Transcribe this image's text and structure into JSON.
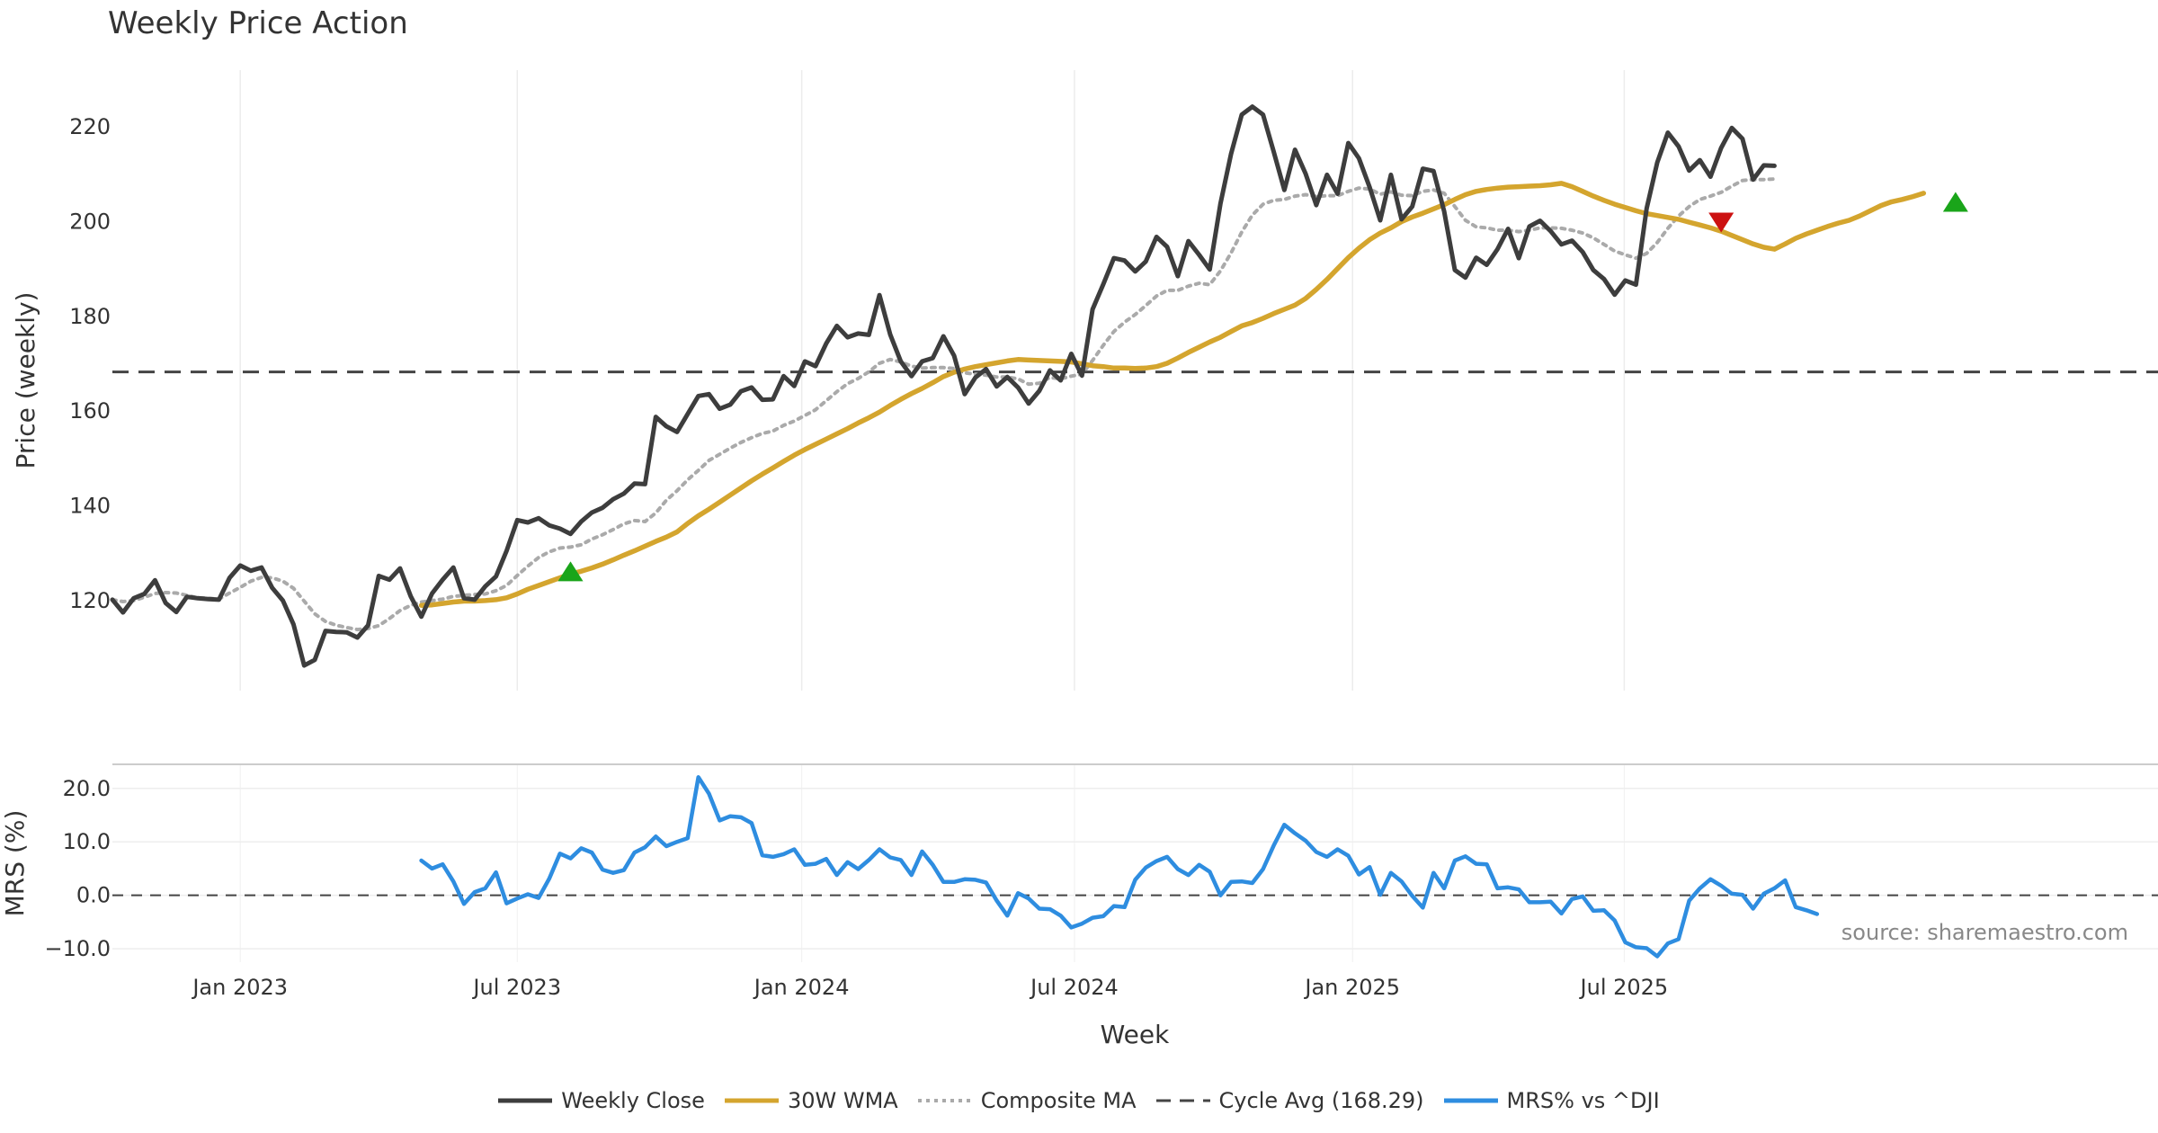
{
  "chart_data": [
    {
      "type": "line",
      "title": "Weekly Price Action",
      "ylabel": "Price (weekly)",
      "ylim": [
        101,
        232
      ],
      "yticks": [
        "120",
        "140",
        "160",
        "180",
        "200",
        "220"
      ],
      "x_range_weeks": [
        0,
        192
      ],
      "series": [
        {
          "name": "Weekly Close",
          "color": "#3d3d3d",
          "start_week": 0,
          "values": [
            120.2,
            117.5,
            120.5,
            121.4,
            124.3,
            119.5,
            117.6,
            120.8,
            120.5,
            120.3,
            120.2,
            124.8,
            127.4,
            126.3,
            127,
            122.7,
            120,
            115,
            106.3,
            107.5,
            113.6,
            113.4,
            113.3,
            112.2,
            114.8,
            125.2,
            124.4,
            126.8,
            120.9,
            116.6,
            121.5,
            124.4,
            127,
            120.5,
            120.2,
            123,
            125.1,
            130.5,
            137,
            136.5,
            137.4,
            135.9,
            135.2,
            134.1,
            136.7,
            138.6,
            139.6,
            141.4,
            142.6,
            144.7,
            144.6,
            158.8,
            156.8,
            155.6,
            159.4,
            163.2,
            163.6,
            160.5,
            161.4,
            164.2,
            165,
            162.4,
            162.5,
            167.4,
            165.3,
            170.5,
            169.5,
            174.3,
            178,
            175.6,
            176.4,
            176.1,
            184.5,
            176.2,
            170.5,
            167.4,
            170.5,
            171.2,
            175.8,
            171.7,
            163.6,
            167.1,
            168.9,
            165.2,
            167.2,
            165,
            161.6,
            164.3,
            168.6,
            166.5,
            172.1,
            167.5,
            181.5,
            186.8,
            192.3,
            191.8,
            189.5,
            191.6,
            196.8,
            194.7,
            188.5,
            195.9,
            193,
            189.9,
            203.8,
            214.3,
            222.6,
            224.3,
            222.6,
            214.8,
            206.7,
            215.2,
            210.1,
            203.5,
            209.9,
            205.9,
            216.6,
            213.4,
            207.3,
            200.3,
            209.9,
            200.5,
            203.2,
            211.2,
            210.7,
            202.2,
            189.8,
            188.2,
            192.4,
            190.9,
            194.2,
            198.5,
            192.3,
            199,
            200.2,
            198,
            195.2,
            196,
            193.6,
            189.8,
            187.9,
            184.6,
            187.6,
            186.7,
            202.8,
            212.5,
            218.8,
            215.9,
            210.8,
            213,
            209.5,
            215.6,
            219.8,
            217.5,
            208.9,
            211.9,
            211.8
          ]
        },
        {
          "name": "30W WMA",
          "color": "#d4a52e",
          "start_week": 29,
          "values": [
            119,
            119.1,
            119.4,
            119.7,
            119.9,
            119.9,
            120,
            120.2,
            120.6,
            121.4,
            122.4,
            123.2,
            124,
            124.8,
            125.6,
            126.2,
            126.9,
            127.7,
            128.6,
            129.6,
            130.5,
            131.5,
            132.5,
            133.4,
            134.5,
            136.3,
            137.9,
            139.3,
            140.8,
            142.3,
            143.8,
            145.3,
            146.7,
            148,
            149.4,
            150.7,
            151.9,
            153,
            154.1,
            155.2,
            156.3,
            157.5,
            158.6,
            159.8,
            161.2,
            162.5,
            163.7,
            164.8,
            166,
            167.3,
            168.2,
            168.9,
            169.4,
            169.8,
            170.2,
            170.6,
            170.9,
            170.8,
            170.7,
            170.6,
            170.5,
            170.4,
            170,
            169.6,
            169.4,
            169.1,
            169.1,
            169,
            169.1,
            169.4,
            170.1,
            171.2,
            172.4,
            173.5,
            174.6,
            175.6,
            176.8,
            178,
            178.7,
            179.6,
            180.6,
            181.5,
            182.4,
            183.8,
            185.7,
            187.8,
            190.1,
            192.4,
            194.4,
            196.2,
            197.6,
            198.7,
            200,
            201,
            201.8,
            202.7,
            203.6,
            204.7,
            205.7,
            206.4,
            206.8,
            207.1,
            207.3,
            207.4,
            207.5,
            207.6,
            207.8,
            208.1,
            207.4,
            206.4,
            205.4,
            204.5,
            203.7,
            203,
            202.3,
            201.7,
            201.3,
            200.9,
            200.5,
            199.9,
            199.3,
            198.7,
            198,
            197.1,
            196.2,
            195.3,
            194.6,
            194.2,
            195.3,
            196.5,
            197.4,
            198.2,
            199,
            199.7,
            200.3,
            201.2,
            202.3,
            203.4,
            204.2,
            204.7,
            205.3,
            206
          ]
        },
        {
          "name": "Composite MA",
          "color": "#aaaaaa",
          "start_week": 0,
          "values": [
            120.2,
            119.8,
            120,
            120.7,
            121.5,
            121.7,
            121.6,
            121.1,
            120.6,
            120.5,
            120.3,
            121.6,
            122.8,
            124.1,
            124.9,
            124.8,
            124.1,
            122.6,
            119.9,
            117.2,
            115.6,
            114.8,
            114.3,
            113.9,
            114.1,
            114.7,
            116.2,
            117.9,
            119,
            119.7,
            120,
            120.3,
            120.9,
            121.1,
            121.3,
            121.4,
            122.1,
            123.2,
            125.3,
            127.3,
            129.1,
            130.3,
            131.1,
            131.3,
            131.8,
            133,
            133.9,
            135,
            136.2,
            136.9,
            136.7,
            138.5,
            141.2,
            143.2,
            145.5,
            147.5,
            149.6,
            150.9,
            152.2,
            153.4,
            154.4,
            155.3,
            155.8,
            157,
            157.9,
            159.1,
            160.3,
            162.2,
            164.1,
            165.8,
            166.9,
            168.3,
            170.1,
            170.9,
            170.4,
            169.5,
            169.1,
            169.2,
            169.2,
            169,
            168.1,
            167.8,
            167.6,
            167.2,
            167.2,
            166.8,
            165.7,
            165.9,
            167.1,
            166.8,
            167.4,
            167.8,
            170.7,
            173.9,
            176.8,
            178.8,
            180.4,
            182.3,
            184.3,
            185.5,
            185.5,
            186.4,
            187,
            186.7,
            189.6,
            193.4,
            197.8,
            201.4,
            203.7,
            204.5,
            204.7,
            205.4,
            205.7,
            205.3,
            205.5,
            205.5,
            206.4,
            207.1,
            206.9,
            205.8,
            206.3,
            205.6,
            205.5,
            206.4,
            206.7,
            206,
            203.2,
            200.3,
            198.9,
            198.7,
            198.2,
            198.2,
            197.9,
            198.2,
            198.7,
            198.7,
            198.6,
            198.2,
            197.6,
            196.6,
            195.2,
            193.8,
            193,
            192.3,
            193.3,
            195.6,
            198.6,
            201.2,
            203.2,
            204.7,
            205.4,
            206.2,
            207.5,
            208.7,
            208.9,
            208.9,
            209
          ]
        }
      ],
      "reference_line": {
        "name": "Cycle Avg (168.29)",
        "value": 168.29,
        "color": "#444444"
      },
      "signals": [
        {
          "type": "buy",
          "week": 43,
          "value": 126,
          "color": "#1aa51a"
        },
        {
          "type": "sell",
          "week": 151,
          "value": 200,
          "color": "#cc1111"
        },
        {
          "type": "buy",
          "week": 173,
          "value": 204,
          "color": "#1aa51a"
        }
      ]
    },
    {
      "type": "line",
      "ylabel": "MRS (%)",
      "ylim": [
        -12.5,
        24.5
      ],
      "yticks": [
        "−10.0",
        "0.0",
        "10.0",
        "20.0"
      ],
      "xlabel": "Week",
      "xticks": [
        "Jan 2023",
        "Jul 2023",
        "Jan 2024",
        "Jul 2024",
        "Jan 2025",
        "Jul 2025"
      ],
      "source": "source: sharemaestro.com",
      "series": [
        {
          "name": "MRS% vs ^DJI",
          "color": "#2e8de0",
          "start_week": 29,
          "values": [
            6.5,
            5,
            5.8,
            2.6,
            -1.6,
            0.6,
            1.3,
            4.3,
            -1.5,
            -0.6,
            0.2,
            -0.5,
            3.1,
            7.8,
            6.9,
            8.8,
            8,
            4.8,
            4.2,
            4.7,
            8,
            9,
            11,
            9.2,
            10,
            10.7,
            22.1,
            19,
            14,
            14.8,
            14.6,
            13.5,
            7.5,
            7.2,
            7.7,
            8.6,
            5.7,
            5.9,
            6.8,
            3.8,
            6.2,
            4.9,
            6.6,
            8.6,
            7.1,
            6.6,
            3.8,
            8.2,
            5.7,
            2.5,
            2.5,
            3,
            2.9,
            2.4,
            -1,
            -3.8,
            0.4,
            -0.6,
            -2.5,
            -2.6,
            -3.8,
            -6,
            -5.3,
            -4.2,
            -3.9,
            -2,
            -2.2,
            2.9,
            5.2,
            6.4,
            7.2,
            4.9,
            3.8,
            5.7,
            4.4,
            0,
            2.5,
            2.6,
            2.3,
            4.9,
            9.3,
            13.2,
            11.6,
            10.2,
            8.1,
            7.2,
            8.6,
            7.4,
            3.9,
            5.3,
            0.1,
            4.2,
            2.6,
            -0.1,
            -2.3,
            4.2,
            1.3,
            6.5,
            7.3,
            5.9,
            5.8,
            1.3,
            1.5,
            1.1,
            -1.3,
            -1.3,
            -1.2,
            -3.4,
            -0.7,
            -0.2,
            -2.9,
            -2.8,
            -4.7,
            -8.8,
            -9.7,
            -9.9,
            -11.4,
            -9,
            -8.2,
            -1,
            1.3,
            3,
            1.8,
            0.3,
            0.1,
            -2.5,
            0.3,
            1.3,
            2.8,
            -2.2,
            -2.8,
            -3.5
          ]
        }
      ],
      "reference_line": {
        "value": 0,
        "color": "#444444"
      }
    }
  ],
  "legend": [
    {
      "label": "Weekly Close",
      "style": "solid",
      "color": "#3d3d3d"
    },
    {
      "label": "30W WMA",
      "style": "solid",
      "color": "#d4a52e"
    },
    {
      "label": "Composite MA",
      "style": "dotted",
      "color": "#aaaaaa"
    },
    {
      "label": "Cycle Avg (168.29)",
      "style": "dashed",
      "color": "#444444"
    },
    {
      "label": "MRS% vs ^DJI",
      "style": "solid",
      "color": "#2e8de0"
    }
  ]
}
